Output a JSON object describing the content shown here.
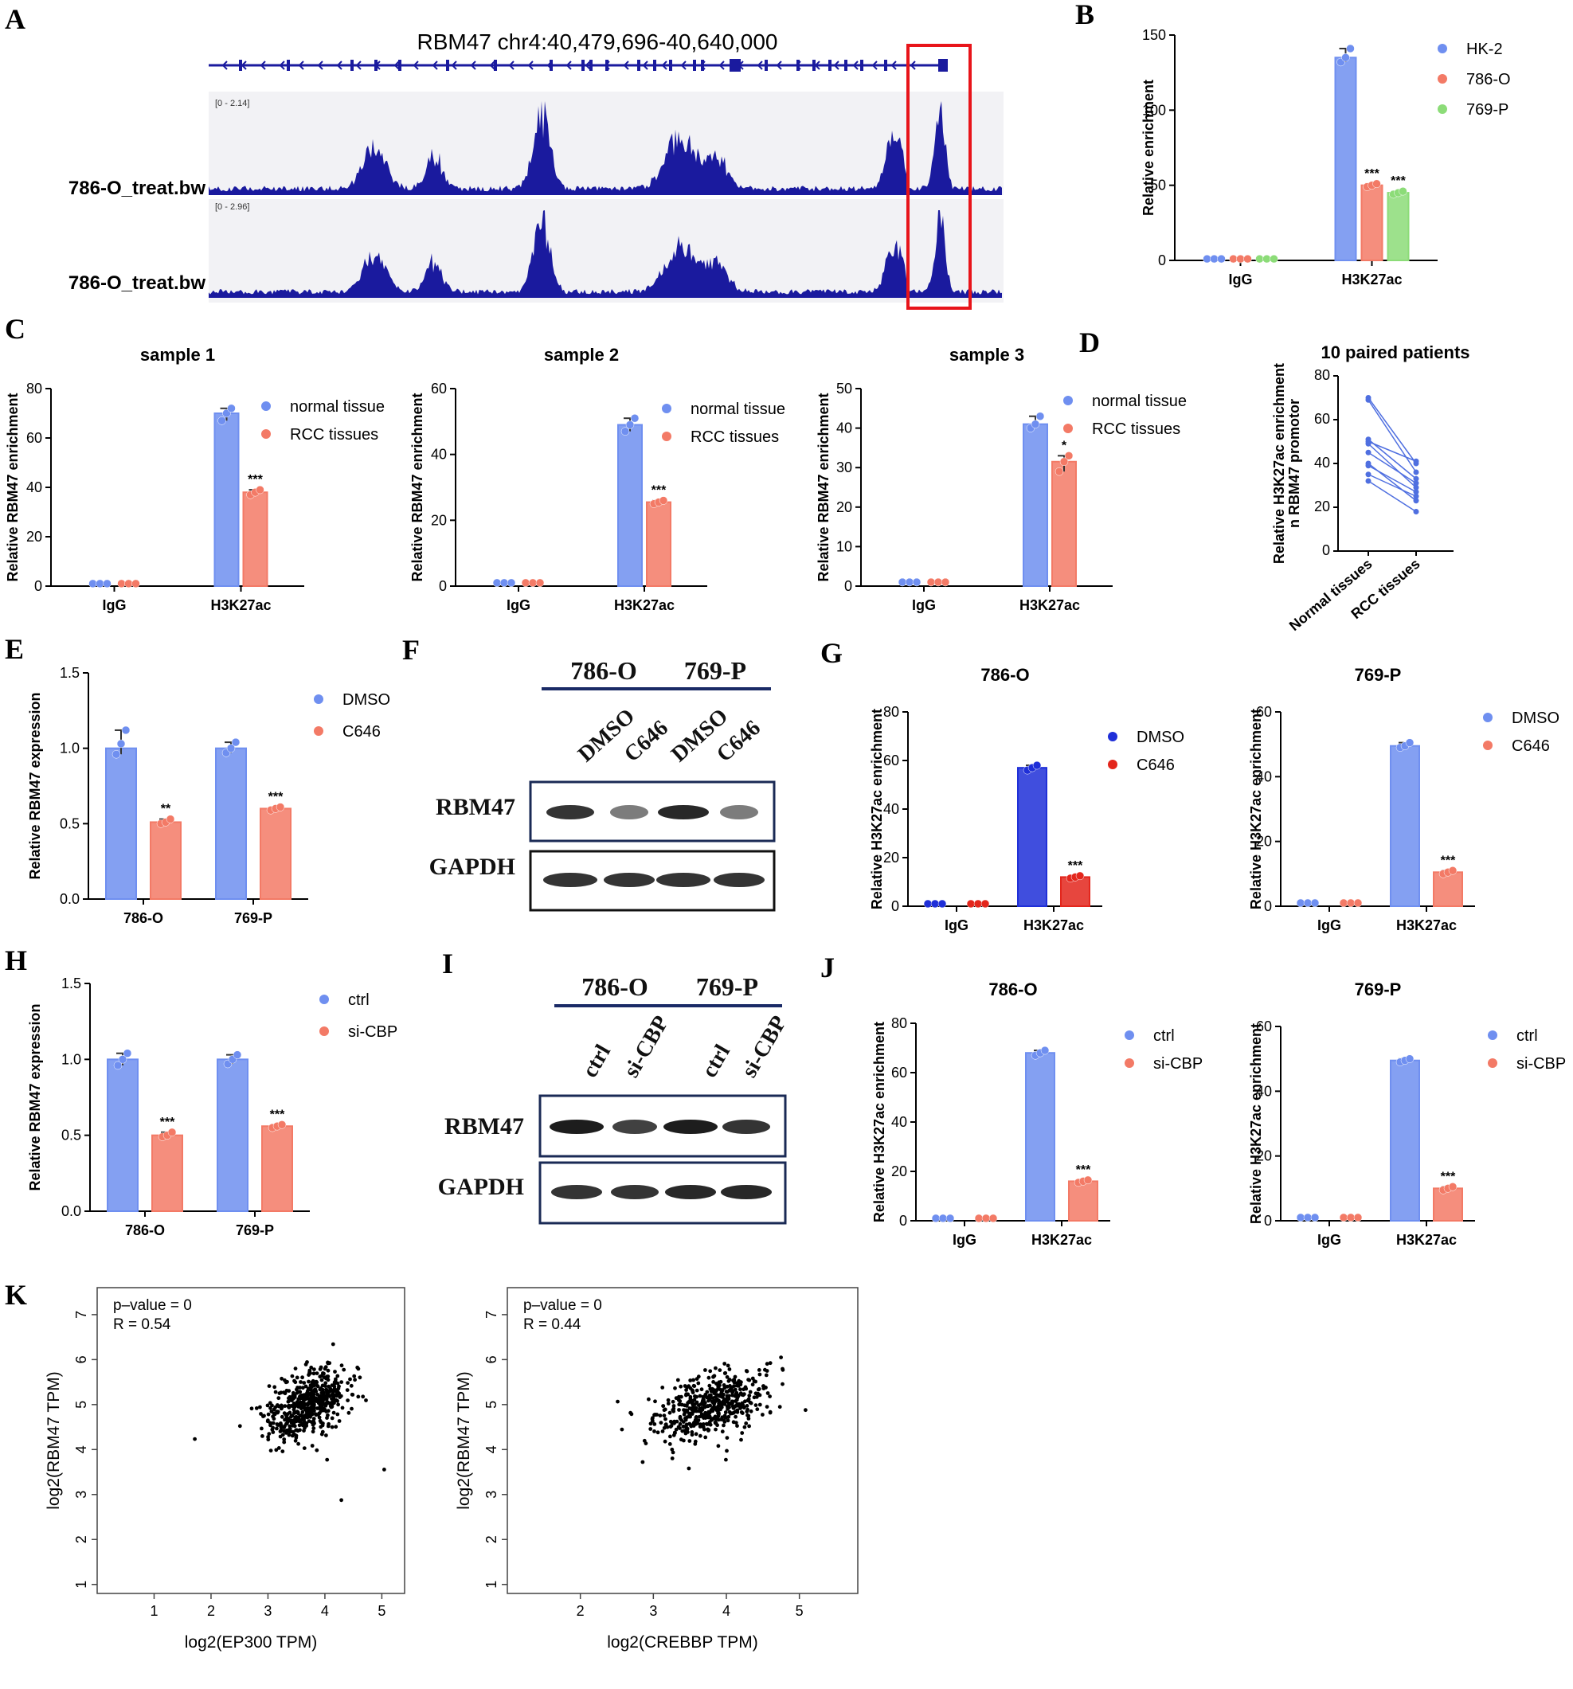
{
  "panels": {
    "A": {
      "label": "A",
      "title": "RBM47 chr4:40,479,696-40,640,000",
      "tracks": [
        {
          "name": "786-O_treat.bw",
          "range": "[0 - 2.14]"
        },
        {
          "name": "786-O_treat.bw",
          "range": "[0 - 2.96]"
        }
      ],
      "track_color": "#1a1a9e",
      "highlight_color": "#e8141a"
    },
    "F": {
      "label": "F",
      "groups": [
        "786-O",
        "769-P"
      ],
      "lanes": [
        "DMSO",
        "C646",
        "DMSO",
        "C646"
      ],
      "rows": [
        "RBM47",
        "GAPDH"
      ]
    },
    "I": {
      "label": "I",
      "groups": [
        "786-O",
        "769-P"
      ],
      "lanes": [
        "ctrl",
        "si-CBP",
        "ctrl",
        "si-CBP"
      ],
      "rows": [
        "RBM47",
        "GAPDH"
      ]
    }
  },
  "colors": {
    "blue": "#6f8ff0",
    "red": "#f37a66",
    "green": "#8cdc78",
    "darkblue": "#1f2fd8",
    "darkred": "#e3261c",
    "line": "#4f6fe0"
  },
  "chart_data": [
    {
      "id": "B",
      "label": "B",
      "type": "bar",
      "title": "",
      "ylabel": "Relative enrichment",
      "ylim": [
        0,
        150
      ],
      "yticks": [
        0,
        50,
        100,
        150
      ],
      "categories": [
        "IgG",
        "H3K27ac"
      ],
      "series": [
        {
          "name": "HK-2",
          "color": "#6f8ff0",
          "values": [
            1,
            135
          ],
          "points": [
            [
              1,
              1,
              1
            ],
            [
              132,
              135,
              141
            ]
          ],
          "sig": [
            "",
            ""
          ]
        },
        {
          "name": "786-O",
          "color": "#f37a66",
          "values": [
            1,
            50
          ],
          "points": [
            [
              1,
              1,
              1
            ],
            [
              49,
              50,
              51
            ]
          ],
          "sig": [
            "",
            "***"
          ]
        },
        {
          "name": "769-P",
          "color": "#8cdc78",
          "values": [
            1,
            45
          ],
          "points": [
            [
              1,
              1,
              1
            ],
            [
              44,
              45,
              46
            ]
          ],
          "sig": [
            "",
            "***"
          ]
        }
      ]
    },
    {
      "id": "C1",
      "label": "C",
      "type": "bar",
      "title": "sample 1",
      "ylabel": "Relative RBM47 enrichment",
      "ylim": [
        0,
        80
      ],
      "yticks": [
        0,
        20,
        40,
        60,
        80
      ],
      "categories": [
        "IgG",
        "H3K27ac"
      ],
      "series": [
        {
          "name": "normal tissue",
          "color": "#6f8ff0",
          "values": [
            1,
            70
          ],
          "points": [
            [
              1,
              1,
              1
            ],
            [
              67,
              70,
              72
            ]
          ],
          "sig": [
            "",
            ""
          ]
        },
        {
          "name": "RCC tissues",
          "color": "#f37a66",
          "values": [
            1,
            38
          ],
          "points": [
            [
              1,
              1,
              1
            ],
            [
              37,
              38,
              39
            ]
          ],
          "sig": [
            "",
            "***"
          ]
        }
      ]
    },
    {
      "id": "C2",
      "label": "",
      "type": "bar",
      "title": "sample 2",
      "ylabel": "Relative RBM47 enrichment",
      "ylim": [
        0,
        60
      ],
      "yticks": [
        0,
        20,
        40,
        60
      ],
      "categories": [
        "IgG",
        "H3K27ac"
      ],
      "series": [
        {
          "name": "normal tissue",
          "color": "#6f8ff0",
          "values": [
            1,
            49
          ],
          "points": [
            [
              1,
              1,
              1
            ],
            [
              47,
              49,
              51
            ]
          ],
          "sig": [
            "",
            ""
          ]
        },
        {
          "name": "RCC tissues",
          "color": "#f37a66",
          "values": [
            1,
            25.5
          ],
          "points": [
            [
              1,
              1,
              1
            ],
            [
              25,
              25.5,
              26
            ]
          ],
          "sig": [
            "",
            "***"
          ]
        }
      ]
    },
    {
      "id": "C3",
      "label": "",
      "type": "bar",
      "title": "sample 3",
      "ylabel": "Relative RBM47 enrichment",
      "ylim": [
        0,
        50
      ],
      "yticks": [
        0,
        10,
        20,
        30,
        40,
        50
      ],
      "categories": [
        "IgG",
        "H3K27ac"
      ],
      "series": [
        {
          "name": "normal tissue",
          "color": "#6f8ff0",
          "values": [
            1,
            41
          ],
          "points": [
            [
              1,
              1,
              1
            ],
            [
              40,
              41,
              43
            ]
          ],
          "sig": [
            "",
            ""
          ]
        },
        {
          "name": "RCC tissues",
          "color": "#f37a66",
          "values": [
            1,
            31.5
          ],
          "points": [
            [
              1,
              1,
              1
            ],
            [
              29,
              31.5,
              33
            ]
          ],
          "sig": [
            "",
            "*"
          ]
        }
      ]
    },
    {
      "id": "D",
      "label": "D",
      "type": "line",
      "title": "10 paired patients",
      "ylabel": "Relative H3K27ac enrichment\nn RBM47 promotor",
      "ylim": [
        0,
        80
      ],
      "yticks": [
        0,
        20,
        40,
        60,
        80
      ],
      "categories": [
        "Normal tissues",
        "RCC tissues"
      ],
      "pairs": [
        [
          70,
          40
        ],
        [
          69,
          36
        ],
        [
          51,
          33
        ],
        [
          50,
          41
        ],
        [
          49,
          29
        ],
        [
          45,
          31
        ],
        [
          40,
          23
        ],
        [
          39,
          27
        ],
        [
          35,
          25
        ],
        [
          32,
          18
        ]
      ]
    },
    {
      "id": "E",
      "label": "E",
      "type": "bar",
      "title": "",
      "ylabel": "Relative RBM47 expression",
      "ylim": [
        0,
        1.5
      ],
      "yticks": [
        0.0,
        0.5,
        1.0,
        1.5
      ],
      "ytick_labels": [
        "0.0",
        "0.5",
        "1.0",
        "1.5"
      ],
      "categories": [
        "786-O",
        "769-P"
      ],
      "series": [
        {
          "name": "DMSO",
          "color": "#6f8ff0",
          "values": [
            1.0,
            1.0
          ],
          "points": [
            [
              0.96,
              1.03,
              1.12
            ],
            [
              0.97,
              1.0,
              1.04
            ]
          ],
          "sig": [
            "",
            ""
          ]
        },
        {
          "name": "C646",
          "color": "#f37a66",
          "values": [
            0.51,
            0.6
          ],
          "points": [
            [
              0.5,
              0.51,
              0.53
            ],
            [
              0.59,
              0.6,
              0.61
            ]
          ],
          "sig": [
            "**",
            "***"
          ]
        }
      ]
    },
    {
      "id": "G1",
      "label": "G",
      "type": "bar",
      "title": "786-O",
      "ylabel": "Relative H3K27ac enrichment",
      "ylim": [
        0,
        80
      ],
      "yticks": [
        0,
        20,
        40,
        60,
        80
      ],
      "categories": [
        "IgG",
        "H3K27ac"
      ],
      "series": [
        {
          "name": "DMSO",
          "color": "#1f2fd8",
          "values": [
            1,
            57
          ],
          "points": [
            [
              1,
              1,
              1
            ],
            [
              56,
              57,
              58
            ]
          ],
          "sig": [
            "",
            ""
          ]
        },
        {
          "name": "C646",
          "color": "#e3261c",
          "values": [
            1,
            12
          ],
          "points": [
            [
              1,
              1,
              1
            ],
            [
              11.5,
              12,
              12.5
            ]
          ],
          "sig": [
            "",
            "***"
          ]
        }
      ]
    },
    {
      "id": "G2",
      "label": "",
      "type": "bar",
      "title": "769-P",
      "ylabel": "Relative H3K27ac enrichment",
      "ylim": [
        0,
        60
      ],
      "yticks": [
        0,
        20,
        40,
        60
      ],
      "categories": [
        "IgG",
        "H3K27ac"
      ],
      "series": [
        {
          "name": "DMSO",
          "color": "#6f8ff0",
          "values": [
            1,
            49.5
          ],
          "points": [
            [
              1,
              1,
              1
            ],
            [
              49,
              49.5,
              50.5
            ]
          ],
          "sig": [
            "",
            ""
          ]
        },
        {
          "name": "C646",
          "color": "#f37a66",
          "values": [
            1,
            10.5
          ],
          "points": [
            [
              1,
              1,
              1
            ],
            [
              10,
              10.5,
              11
            ]
          ],
          "sig": [
            "",
            "***"
          ]
        }
      ]
    },
    {
      "id": "H",
      "label": "H",
      "type": "bar",
      "title": "",
      "ylabel": "Relative RBM47 expression",
      "ylim": [
        0,
        1.5
      ],
      "yticks": [
        0.0,
        0.5,
        1.0,
        1.5
      ],
      "ytick_labels": [
        "0.0",
        "0.5",
        "1.0",
        "1.5"
      ],
      "categories": [
        "786-O",
        "769-P"
      ],
      "series": [
        {
          "name": "ctrl",
          "color": "#6f8ff0",
          "values": [
            1.0,
            1.0
          ],
          "points": [
            [
              0.96,
              1.0,
              1.04
            ],
            [
              0.97,
              1.0,
              1.03
            ]
          ],
          "sig": [
            "",
            ""
          ]
        },
        {
          "name": "si-CBP",
          "color": "#f37a66",
          "values": [
            0.5,
            0.56
          ],
          "points": [
            [
              0.49,
              0.5,
              0.52
            ],
            [
              0.55,
              0.56,
              0.57
            ]
          ],
          "sig": [
            "***",
            "***"
          ]
        }
      ]
    },
    {
      "id": "J1",
      "label": "J",
      "type": "bar",
      "title": "786-O",
      "ylabel": "Relative H3K27ac enrichment",
      "ylim": [
        0,
        80
      ],
      "yticks": [
        0,
        20,
        40,
        60,
        80
      ],
      "categories": [
        "IgG",
        "H3K27ac"
      ],
      "series": [
        {
          "name": "ctrl",
          "color": "#6f8ff0",
          "values": [
            1,
            68
          ],
          "points": [
            [
              1,
              1,
              1
            ],
            [
              67,
              68,
              69
            ]
          ],
          "sig": [
            "",
            ""
          ]
        },
        {
          "name": "si-CBP",
          "color": "#f37a66",
          "values": [
            1,
            16
          ],
          "points": [
            [
              1,
              1,
              1
            ],
            [
              15.5,
              16,
              16.5
            ]
          ],
          "sig": [
            "",
            "***"
          ]
        }
      ]
    },
    {
      "id": "J2",
      "label": "",
      "type": "bar",
      "title": "769-P",
      "ylabel": "Relative H3K27ac enrichment",
      "ylim": [
        0,
        60
      ],
      "yticks": [
        0,
        20,
        40,
        60
      ],
      "categories": [
        "IgG",
        "H3K27ac"
      ],
      "series": [
        {
          "name": "ctrl",
          "color": "#6f8ff0",
          "values": [
            1,
            49.5
          ],
          "points": [
            [
              1,
              1,
              1
            ],
            [
              49,
              49.5,
              50
            ]
          ],
          "sig": [
            "",
            ""
          ]
        },
        {
          "name": "si-CBP",
          "color": "#f37a66",
          "values": [
            1,
            10
          ],
          "points": [
            [
              1,
              1,
              1
            ],
            [
              9.5,
              10,
              10.5
            ]
          ],
          "sig": [
            "",
            "***"
          ]
        }
      ]
    },
    {
      "id": "K1",
      "label": "K",
      "type": "scatter",
      "title": "",
      "xlabel": "log2(EP300 TPM)",
      "ylabel": "log2(RBM47 TPM)",
      "xlim": [
        0,
        5.4
      ],
      "ylim": [
        0.8,
        7.6
      ],
      "xticks": [
        1,
        2,
        3,
        4,
        5
      ],
      "yticks": [
        1,
        2,
        3,
        4,
        5,
        6,
        7
      ],
      "annotations": [
        "p–value = 0",
        "R = 0.54"
      ],
      "n": 520,
      "center": [
        3.7,
        5.0
      ],
      "slope": 0.52
    },
    {
      "id": "K2",
      "label": "",
      "type": "scatter",
      "title": "",
      "xlabel": "log2(CREBBP TPM)",
      "ylabel": "log2(RBM47 TPM)",
      "xlim": [
        1.0,
        5.8
      ],
      "ylim": [
        0.8,
        7.6
      ],
      "xticks": [
        2,
        3,
        4,
        5
      ],
      "yticks": [
        1,
        2,
        3,
        4,
        5,
        6,
        7
      ],
      "annotations": [
        "p–value = 0",
        "R = 0.44"
      ],
      "n": 520,
      "center": [
        3.8,
        5.0
      ],
      "slope": 0.48
    }
  ]
}
